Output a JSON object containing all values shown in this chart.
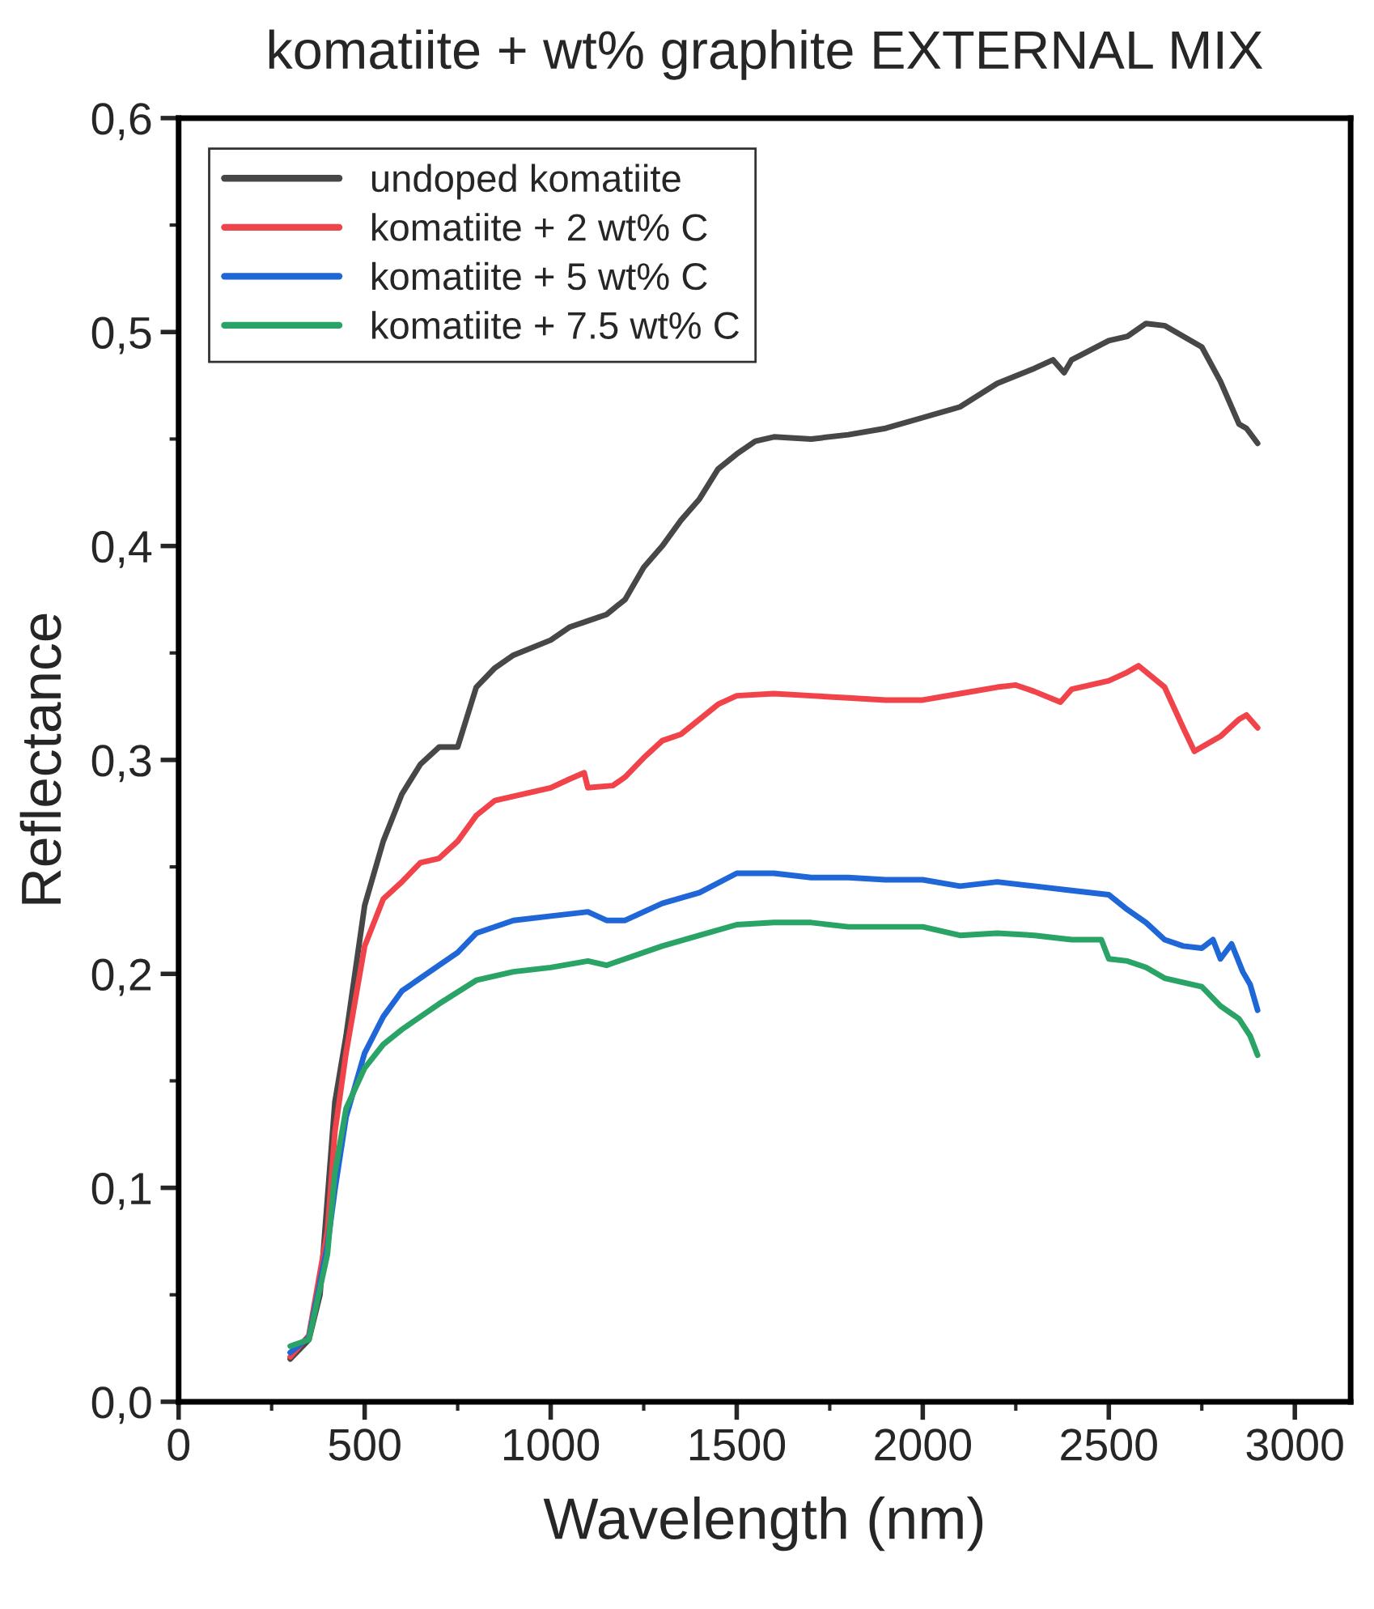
{
  "chart_data": {
    "type": "line",
    "title": "komatiite + wt% graphite EXTERNAL MIX",
    "xlabel": "Wavelength (nm)",
    "ylabel": "Reflectance",
    "xlim": [
      0,
      3150
    ],
    "xticks": [
      0,
      500,
      1000,
      1500,
      2000,
      2500,
      3000
    ],
    "ylim": [
      0,
      0.6
    ],
    "yticks": [
      {
        "value": 0,
        "label": "0,0"
      },
      {
        "value": 0.1,
        "label": "0,1"
      },
      {
        "value": 0.2,
        "label": "0,2"
      },
      {
        "value": 0.3,
        "label": "0,3"
      },
      {
        "value": 0.4,
        "label": "0,4"
      },
      {
        "value": 0.5,
        "label": "0,5"
      },
      {
        "value": 0.6,
        "label": "0,6"
      }
    ],
    "grid": false,
    "legend": "top left",
    "marker": "none",
    "line_style": "solid",
    "series": [
      {
        "name": "undoped komatiite",
        "color": "#474747",
        "x": [
          300,
          350,
          380,
          400,
          420,
          450,
          500,
          550,
          600,
          650,
          700,
          750,
          800,
          850,
          900,
          1000,
          1050,
          1100,
          1150,
          1200,
          1250,
          1300,
          1350,
          1400,
          1450,
          1500,
          1550,
          1600,
          1700,
          1800,
          1900,
          2000,
          2100,
          2200,
          2300,
          2350,
          2380,
          2400,
          2500,
          2550,
          2600,
          2650,
          2700,
          2750,
          2800,
          2850,
          2870,
          2900
        ],
        "values": [
          0.02,
          0.029,
          0.05,
          0.095,
          0.14,
          0.171,
          0.232,
          0.262,
          0.284,
          0.298,
          0.306,
          0.306,
          0.334,
          0.343,
          0.349,
          0.356,
          0.362,
          0.365,
          0.368,
          0.375,
          0.39,
          0.4,
          0.412,
          0.422,
          0.436,
          0.443,
          0.449,
          0.451,
          0.45,
          0.452,
          0.455,
          0.46,
          0.465,
          0.476,
          0.483,
          0.487,
          0.481,
          0.487,
          0.496,
          0.498,
          0.504,
          0.503,
          0.498,
          0.493,
          0.477,
          0.457,
          0.455,
          0.448
        ]
      },
      {
        "name": "komatiite + 2 wt% C",
        "color": "#f0434a",
        "x": [
          300,
          350,
          400,
          420,
          450,
          500,
          550,
          600,
          650,
          700,
          750,
          800,
          850,
          900,
          1000,
          1050,
          1090,
          1100,
          1167,
          1200,
          1250,
          1300,
          1350,
          1400,
          1450,
          1500,
          1600,
          1700,
          1800,
          1900,
          2000,
          2100,
          2200,
          2250,
          2300,
          2370,
          2400,
          2500,
          2550,
          2580,
          2650,
          2700,
          2730,
          2800,
          2850,
          2870,
          2900
        ],
        "values": [
          0.021,
          0.031,
          0.08,
          0.126,
          0.163,
          0.213,
          0.235,
          0.243,
          0.252,
          0.254,
          0.262,
          0.274,
          0.281,
          0.283,
          0.287,
          0.291,
          0.294,
          0.287,
          0.288,
          0.292,
          0.301,
          0.309,
          0.312,
          0.319,
          0.326,
          0.33,
          0.331,
          0.33,
          0.329,
          0.328,
          0.328,
          0.331,
          0.334,
          0.335,
          0.332,
          0.327,
          0.333,
          0.337,
          0.341,
          0.344,
          0.334,
          0.315,
          0.304,
          0.311,
          0.319,
          0.321,
          0.315
        ]
      },
      {
        "name": "komatiite + 5 wt% C",
        "color": "#1f66d6",
        "x": [
          300,
          350,
          400,
          420,
          450,
          500,
          550,
          600,
          700,
          750,
          800,
          900,
          1000,
          1100,
          1150,
          1200,
          1300,
          1400,
          1500,
          1600,
          1700,
          1800,
          1900,
          2000,
          2100,
          2200,
          2300,
          2400,
          2500,
          2550,
          2600,
          2650,
          2700,
          2750,
          2780,
          2800,
          2830,
          2860,
          2880,
          2900
        ],
        "values": [
          0.023,
          0.03,
          0.073,
          0.099,
          0.133,
          0.163,
          0.18,
          0.192,
          0.204,
          0.21,
          0.219,
          0.225,
          0.227,
          0.229,
          0.225,
          0.225,
          0.233,
          0.238,
          0.247,
          0.247,
          0.245,
          0.245,
          0.244,
          0.244,
          0.241,
          0.243,
          0.241,
          0.239,
          0.237,
          0.23,
          0.224,
          0.216,
          0.213,
          0.212,
          0.216,
          0.207,
          0.214,
          0.201,
          0.195,
          0.183
        ]
      },
      {
        "name": "komatiite + 7.5 wt% C",
        "color": "#2aa366",
        "x": [
          300,
          350,
          400,
          420,
          450,
          500,
          550,
          600,
          700,
          800,
          900,
          1000,
          1100,
          1150,
          1200,
          1300,
          1400,
          1500,
          1600,
          1700,
          1800,
          1900,
          2000,
          2100,
          2200,
          2300,
          2400,
          2480,
          2500,
          2550,
          2600,
          2650,
          2700,
          2750,
          2800,
          2850,
          2880,
          2900
        ],
        "values": [
          0.026,
          0.029,
          0.069,
          0.107,
          0.137,
          0.156,
          0.167,
          0.174,
          0.186,
          0.197,
          0.201,
          0.203,
          0.206,
          0.204,
          0.207,
          0.213,
          0.218,
          0.223,
          0.224,
          0.224,
          0.222,
          0.222,
          0.222,
          0.218,
          0.219,
          0.218,
          0.216,
          0.216,
          0.207,
          0.206,
          0.203,
          0.198,
          0.196,
          0.194,
          0.185,
          0.179,
          0.171,
          0.162
        ]
      }
    ]
  }
}
